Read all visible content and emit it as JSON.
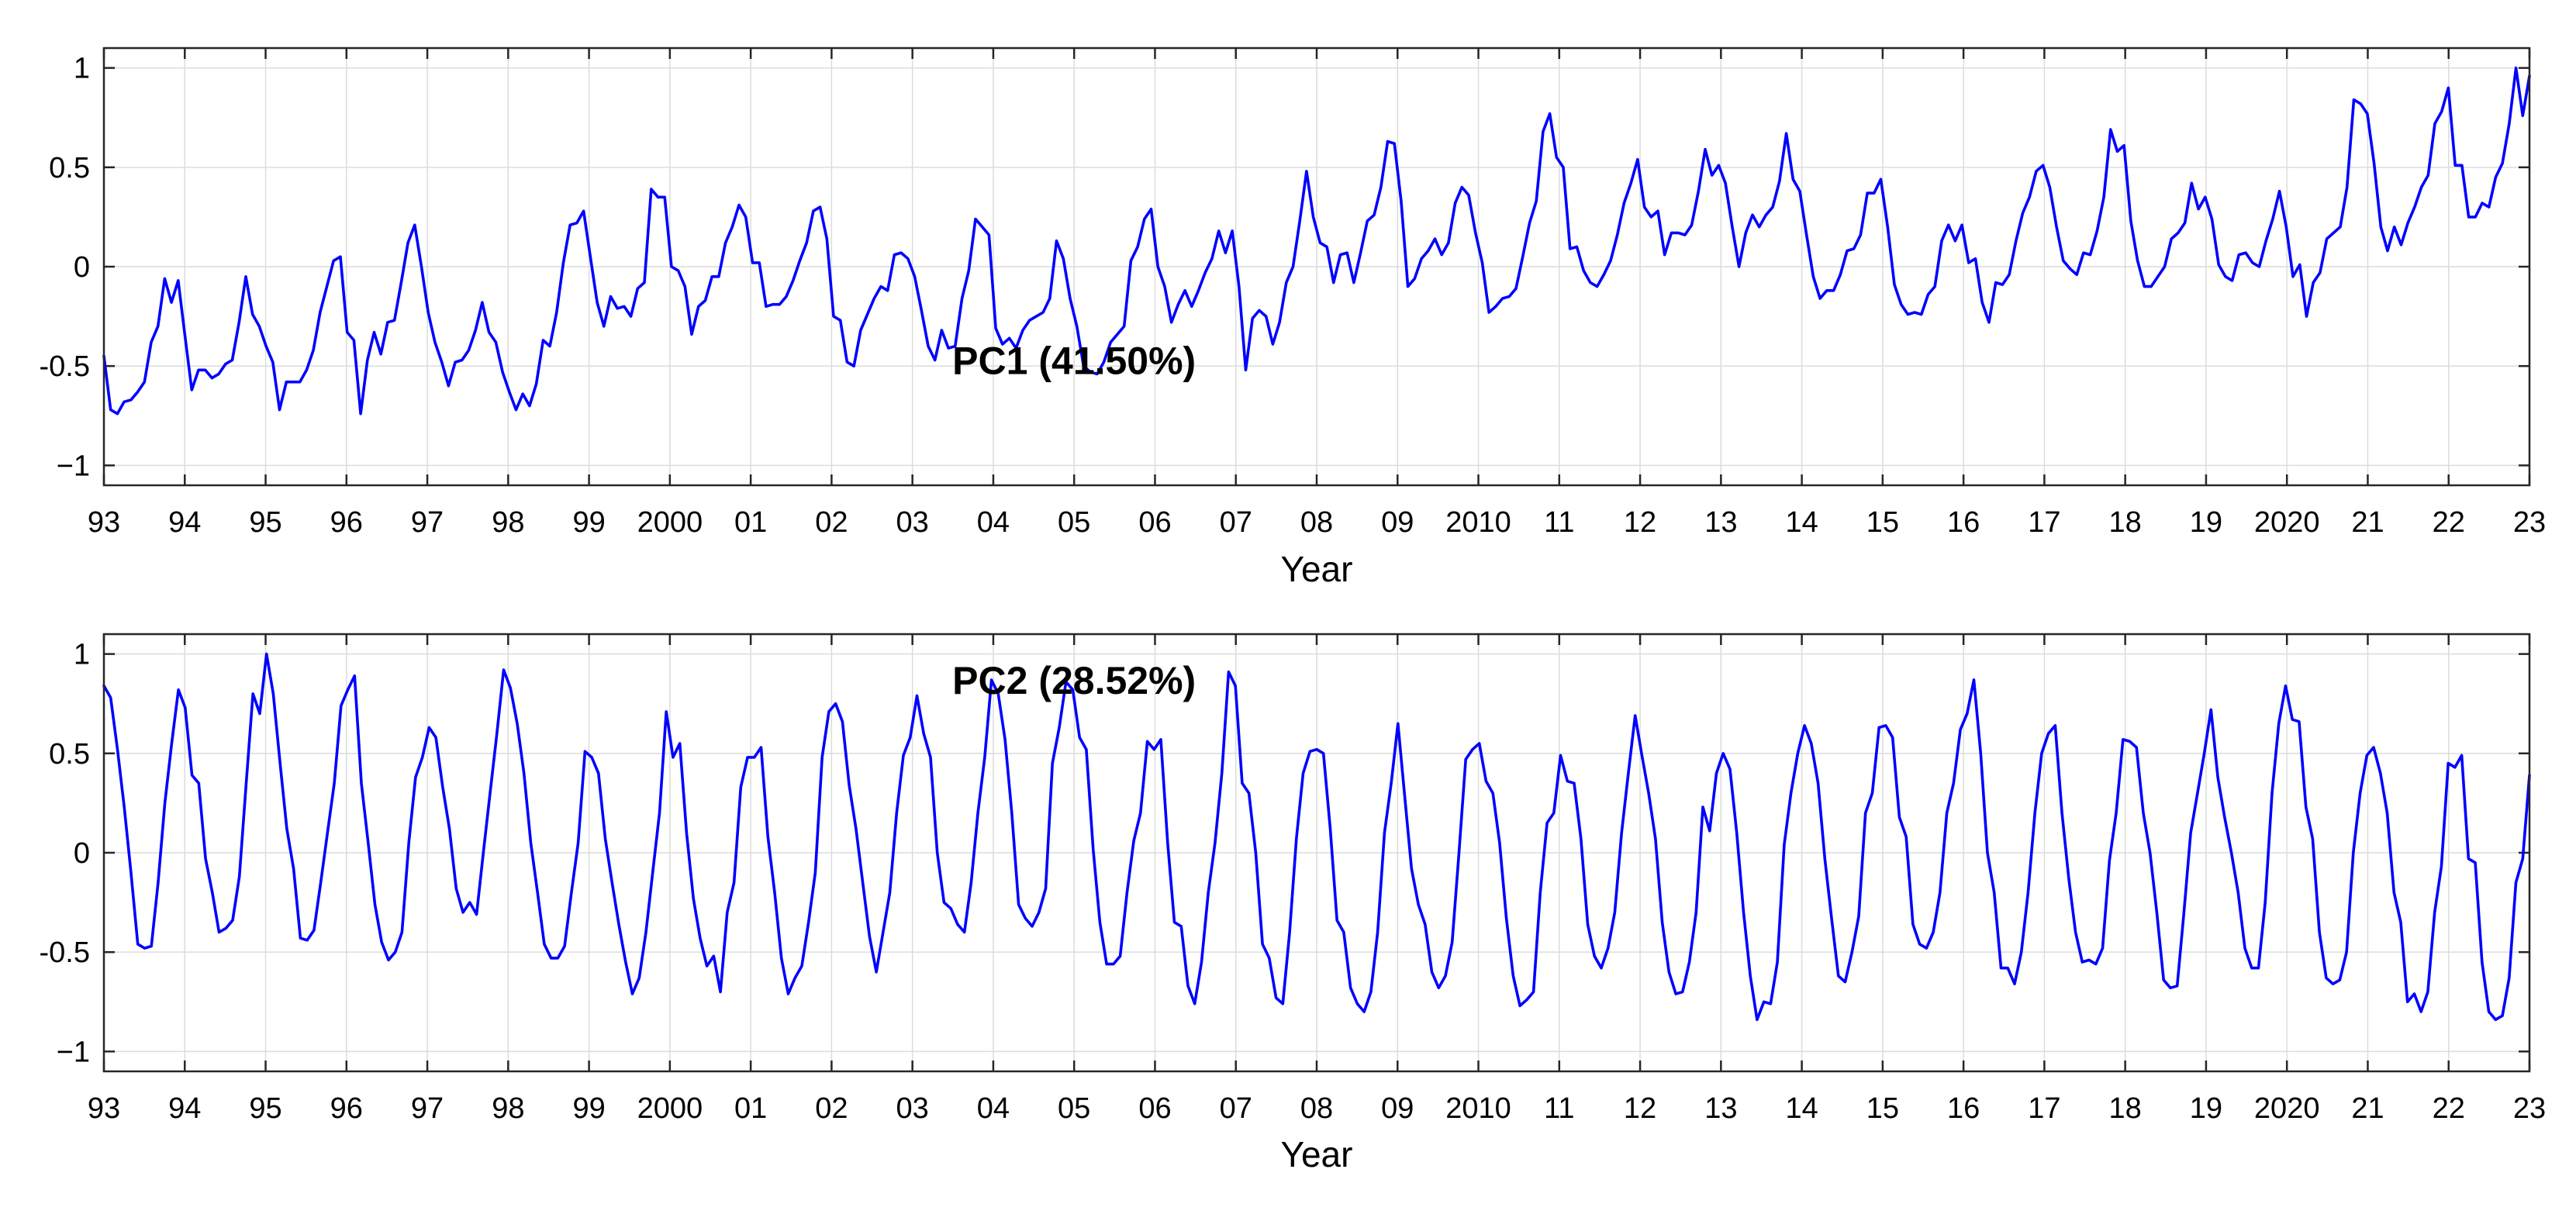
{
  "chart_data": [
    {
      "type": "line",
      "title": "",
      "xlabel": "Year",
      "ylabel": "",
      "xlim": [
        1993,
        2023
      ],
      "ylim": [
        -1.1,
        1.1
      ],
      "x_ticks": [
        1993,
        1994,
        1995,
        1996,
        1997,
        1998,
        1999,
        2000,
        2001,
        2002,
        2003,
        2004,
        2005,
        2006,
        2007,
        2008,
        2009,
        2010,
        2011,
        2012,
        2013,
        2014,
        2015,
        2016,
        2017,
        2018,
        2019,
        2020,
        2021,
        2022,
        2023
      ],
      "x_tick_labels": [
        "93",
        "94",
        "95",
        "96",
        "97",
        "98",
        "99",
        "2000",
        "01",
        "02",
        "03",
        "04",
        "05",
        "06",
        "07",
        "08",
        "09",
        "2010",
        "11",
        "12",
        "13",
        "14",
        "15",
        "16",
        "17",
        "18",
        "19",
        "2020",
        "21",
        "22",
        "23"
      ],
      "y_ticks": [
        1,
        0.5,
        0,
        -0.5,
        -1
      ],
      "y_tick_labels": [
        "1",
        "0.5",
        "0",
        "-0.5",
        "−1"
      ],
      "grid": true,
      "annotation": "PC1 (41.50%)",
      "annotation_position": {
        "x": 2005.0,
        "y": -0.47
      },
      "series": [
        {
          "name": "PC1",
          "color": "#0000ff",
          "values": [
            -0.45,
            -0.72,
            -0.74,
            -0.68,
            -0.67,
            -0.63,
            -0.58,
            -0.38,
            -0.3,
            -0.06,
            -0.18,
            -0.07,
            -0.35,
            -0.62,
            -0.52,
            -0.52,
            -0.56,
            -0.54,
            -0.49,
            -0.47,
            -0.28,
            -0.05,
            -0.24,
            -0.3,
            -0.4,
            -0.48,
            -0.72,
            -0.58,
            -0.58,
            -0.58,
            -0.52,
            -0.42,
            -0.23,
            -0.1,
            0.03,
            0.05,
            -0.33,
            -0.37,
            -0.74,
            -0.47,
            -0.33,
            -0.44,
            -0.28,
            -0.27,
            -0.08,
            0.12,
            0.21,
            0.0,
            -0.23,
            -0.38,
            -0.48,
            -0.6,
            -0.48,
            -0.47,
            -0.42,
            -0.32,
            -0.18,
            -0.33,
            -0.38,
            -0.53,
            -0.63,
            -0.72,
            -0.64,
            -0.7,
            -0.59,
            -0.37,
            -0.4,
            -0.23,
            0.02,
            0.21,
            0.22,
            0.28,
            0.05,
            -0.18,
            -0.3,
            -0.15,
            -0.21,
            -0.2,
            -0.25,
            -0.11,
            -0.08,
            0.39,
            0.35,
            0.35,
            0.0,
            -0.02,
            -0.1,
            -0.34,
            -0.2,
            -0.17,
            -0.05,
            -0.05,
            0.12,
            0.2,
            0.31,
            0.25,
            0.02,
            0.02,
            -0.2,
            -0.19,
            -0.19,
            -0.15,
            -0.07,
            0.03,
            0.12,
            0.28,
            0.3,
            0.14,
            -0.25,
            -0.27,
            -0.48,
            -0.5,
            -0.32,
            -0.24,
            -0.16,
            -0.1,
            -0.12,
            0.06,
            0.07,
            0.04,
            -0.05,
            -0.22,
            -0.4,
            -0.47,
            -0.32,
            -0.41,
            -0.4,
            -0.16,
            -0.02,
            0.24,
            0.2,
            0.16,
            -0.31,
            -0.39,
            -0.36,
            -0.41,
            -0.32,
            -0.27,
            -0.25,
            -0.23,
            -0.16,
            0.13,
            0.04,
            -0.16,
            -0.3,
            -0.5,
            -0.53,
            -0.54,
            -0.48,
            -0.38,
            -0.34,
            -0.3,
            0.03,
            0.1,
            0.24,
            0.29,
            0.0,
            -0.1,
            -0.28,
            -0.19,
            -0.12,
            -0.2,
            -0.12,
            -0.03,
            0.04,
            0.18,
            0.07,
            0.18,
            -0.1,
            -0.52,
            -0.26,
            -0.22,
            -0.25,
            -0.39,
            -0.28,
            -0.08,
            0.0,
            0.23,
            0.48,
            0.25,
            0.12,
            0.1,
            -0.08,
            0.06,
            0.07,
            -0.08,
            0.07,
            0.23,
            0.26,
            0.4,
            0.63,
            0.62,
            0.33,
            -0.1,
            -0.06,
            0.04,
            0.08,
            0.14,
            0.06,
            0.12,
            0.32,
            0.4,
            0.36,
            0.17,
            0.02,
            -0.23,
            -0.2,
            -0.16,
            -0.15,
            -0.11,
            0.05,
            0.22,
            0.33,
            0.68,
            0.77,
            0.55,
            0.5,
            0.09,
            0.1,
            -0.02,
            -0.08,
            -0.1,
            -0.04,
            0.03,
            0.16,
            0.32,
            0.42,
            0.54,
            0.3,
            0.25,
            0.28,
            0.06,
            0.17,
            0.17,
            0.16,
            0.21,
            0.38,
            0.59,
            0.46,
            0.51,
            0.42,
            0.2,
            0.0,
            0.17,
            0.26,
            0.2,
            0.26,
            0.3,
            0.43,
            0.67,
            0.44,
            0.38,
            0.16,
            -0.05,
            -0.16,
            -0.12,
            -0.12,
            -0.04,
            0.08,
            0.09,
            0.16,
            0.37,
            0.37,
            0.44,
            0.2,
            -0.09,
            -0.19,
            -0.24,
            -0.23,
            -0.24,
            -0.14,
            -0.1,
            0.13,
            0.21,
            0.13,
            0.21,
            0.02,
            0.04,
            -0.18,
            -0.28,
            -0.08,
            -0.09,
            -0.04,
            0.13,
            0.27,
            0.35,
            0.48,
            0.51,
            0.4,
            0.2,
            0.03,
            -0.01,
            -0.04,
            0.07,
            0.06,
            0.18,
            0.35,
            0.69,
            0.58,
            0.61,
            0.23,
            0.03,
            -0.1,
            -0.1,
            -0.05,
            0.0,
            0.14,
            0.17,
            0.22,
            0.42,
            0.29,
            0.35,
            0.24,
            0.01,
            -0.05,
            -0.07,
            0.06,
            0.07,
            0.02,
            0.0,
            0.13,
            0.24,
            0.38,
            0.2,
            -0.05,
            0.01,
            -0.25,
            -0.08,
            -0.03,
            0.14,
            0.17,
            0.2,
            0.4,
            0.84,
            0.82,
            0.77,
            0.52,
            0.2,
            0.08,
            0.2,
            0.11,
            0.22,
            0.3,
            0.4,
            0.46,
            0.72,
            0.78,
            0.9,
            0.51,
            0.51,
            0.25,
            0.25,
            0.32,
            0.3,
            0.45,
            0.52,
            0.72,
            1.0,
            0.76,
            0.96
          ]
        }
      ]
    },
    {
      "type": "line",
      "title": "",
      "xlabel": "Year",
      "ylabel": "",
      "xlim": [
        1993,
        2023
      ],
      "ylim": [
        -1.1,
        1.1
      ],
      "x_ticks": [
        1993,
        1994,
        1995,
        1996,
        1997,
        1998,
        1999,
        2000,
        2001,
        2002,
        2003,
        2004,
        2005,
        2006,
        2007,
        2008,
        2009,
        2010,
        2011,
        2012,
        2013,
        2014,
        2015,
        2016,
        2017,
        2018,
        2019,
        2020,
        2021,
        2022,
        2023
      ],
      "x_tick_labels": [
        "93",
        "94",
        "95",
        "96",
        "97",
        "98",
        "99",
        "2000",
        "01",
        "02",
        "03",
        "04",
        "05",
        "06",
        "07",
        "08",
        "09",
        "2010",
        "11",
        "12",
        "13",
        "14",
        "15",
        "16",
        "17",
        "18",
        "19",
        "2020",
        "21",
        "22",
        "23"
      ],
      "y_ticks": [
        1,
        0.5,
        0,
        -0.5,
        -1
      ],
      "y_tick_labels": [
        "1",
        "0.5",
        "0",
        "-0.5",
        "−1"
      ],
      "grid": true,
      "annotation": "PC2 (28.52%)",
      "annotation_position": {
        "x": 2005.0,
        "y": 0.87
      },
      "series": [
        {
          "name": "PC2",
          "color": "#0000ff",
          "values": [
            0.84,
            0.78,
            0.52,
            0.23,
            -0.1,
            -0.46,
            -0.48,
            -0.47,
            -0.15,
            0.25,
            0.55,
            0.82,
            0.73,
            0.39,
            0.35,
            -0.03,
            -0.2,
            -0.4,
            -0.38,
            -0.34,
            -0.12,
            0.35,
            0.8,
            0.7,
            1.0,
            0.8,
            0.45,
            0.12,
            -0.08,
            -0.43,
            -0.44,
            -0.39,
            -0.15,
            0.1,
            0.35,
            0.74,
            0.82,
            0.89,
            0.35,
            0.05,
            -0.26,
            -0.45,
            -0.54,
            -0.5,
            -0.4,
            0.05,
            0.38,
            0.48,
            0.63,
            0.58,
            0.33,
            0.12,
            -0.18,
            -0.3,
            -0.25,
            -0.31,
            0.0,
            0.3,
            0.6,
            0.92,
            0.83,
            0.65,
            0.4,
            0.05,
            -0.2,
            -0.46,
            -0.53,
            -0.53,
            -0.47,
            -0.2,
            0.05,
            0.51,
            0.48,
            0.4,
            0.07,
            -0.15,
            -0.36,
            -0.55,
            -0.71,
            -0.63,
            -0.4,
            -0.1,
            0.2,
            0.71,
            0.48,
            0.55,
            0.1,
            -0.23,
            -0.43,
            -0.57,
            -0.52,
            -0.7,
            -0.3,
            -0.15,
            0.33,
            0.48,
            0.48,
            0.53,
            0.08,
            -0.2,
            -0.53,
            -0.71,
            -0.63,
            -0.57,
            -0.35,
            -0.1,
            0.48,
            0.71,
            0.75,
            0.66,
            0.34,
            0.12,
            -0.15,
            -0.42,
            -0.6,
            -0.4,
            -0.2,
            0.2,
            0.49,
            0.58,
            0.79,
            0.6,
            0.48,
            0.0,
            -0.25,
            -0.28,
            -0.36,
            -0.4,
            -0.15,
            0.2,
            0.48,
            0.87,
            0.8,
            0.57,
            0.2,
            -0.26,
            -0.33,
            -0.37,
            -0.3,
            -0.18,
            0.45,
            0.63,
            0.86,
            0.82,
            0.58,
            0.52,
            0.02,
            -0.35,
            -0.56,
            -0.56,
            -0.52,
            -0.2,
            0.06,
            0.2,
            0.56,
            0.52,
            0.57,
            0.05,
            -0.35,
            -0.37,
            -0.67,
            -0.76,
            -0.55,
            -0.2,
            0.05,
            0.4,
            0.91,
            0.84,
            0.35,
            0.3,
            0.0,
            -0.46,
            -0.53,
            -0.73,
            -0.76,
            -0.4,
            0.07,
            0.4,
            0.51,
            0.52,
            0.5,
            0.12,
            -0.34,
            -0.4,
            -0.68,
            -0.76,
            -0.8,
            -0.7,
            -0.4,
            0.1,
            0.35,
            0.65,
            0.28,
            -0.08,
            -0.26,
            -0.36,
            -0.6,
            -0.68,
            -0.62,
            -0.45,
            0.0,
            0.47,
            0.52,
            0.55,
            0.36,
            0.3,
            0.05,
            -0.33,
            -0.62,
            -0.77,
            -0.74,
            -0.7,
            -0.2,
            0.15,
            0.2,
            0.49,
            0.36,
            0.35,
            0.07,
            -0.36,
            -0.52,
            -0.58,
            -0.48,
            -0.3,
            0.1,
            0.4,
            0.69,
            0.49,
            0.3,
            0.07,
            -0.35,
            -0.6,
            -0.71,
            -0.7,
            -0.55,
            -0.3,
            0.23,
            0.11,
            0.4,
            0.5,
            0.42,
            0.1,
            -0.3,
            -0.62,
            -0.84,
            -0.75,
            -0.76,
            -0.55,
            0.04,
            0.3,
            0.5,
            0.64,
            0.55,
            0.35,
            -0.03,
            -0.33,
            -0.62,
            -0.65,
            -0.5,
            -0.32,
            0.2,
            0.3,
            0.63,
            0.64,
            0.58,
            0.18,
            0.08,
            -0.36,
            -0.46,
            -0.48,
            -0.4,
            -0.2,
            0.2,
            0.35,
            0.62,
            0.7,
            0.87,
            0.5,
            0.0,
            -0.2,
            -0.58,
            -0.58,
            -0.66,
            -0.5,
            -0.2,
            0.2,
            0.5,
            0.6,
            0.64,
            0.2,
            -0.13,
            -0.4,
            -0.55,
            -0.54,
            -0.56,
            -0.48,
            -0.04,
            0.2,
            0.57,
            0.56,
            0.53,
            0.2,
            0.0,
            -0.3,
            -0.64,
            -0.68,
            -0.67,
            -0.3,
            0.1,
            0.3,
            0.5,
            0.72,
            0.38,
            0.18,
            0.0,
            -0.2,
            -0.48,
            -0.58,
            -0.58,
            -0.25,
            0.3,
            0.65,
            0.84,
            0.67,
            0.66,
            0.23,
            0.07,
            -0.4,
            -0.63,
            -0.66,
            -0.64,
            -0.5,
            0.0,
            0.3,
            0.49,
            0.53,
            0.4,
            0.2,
            -0.2,
            -0.35,
            -0.75,
            -0.71,
            -0.8,
            -0.7,
            -0.3,
            -0.07,
            0.45,
            0.43,
            0.49,
            -0.03,
            -0.05,
            -0.55,
            -0.8,
            -0.84,
            -0.82,
            -0.63,
            -0.15,
            -0.03,
            0.39
          ]
        }
      ]
    }
  ]
}
